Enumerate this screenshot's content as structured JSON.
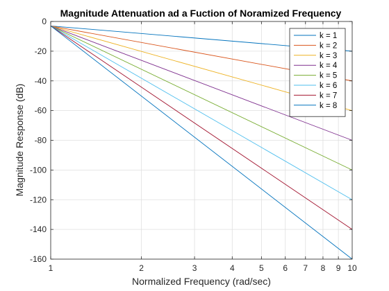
{
  "chart_data": {
    "type": "line",
    "title": "Magnitude Attenuation ad a Fuction of Noramized Frequency",
    "xlabel": "Normalized Frequency (rad/sec)",
    "ylabel": "Magnitude Response (dB)",
    "xscale": "log",
    "xlim": [
      1,
      10
    ],
    "ylim": [
      -160,
      0
    ],
    "x_ticks": [
      1,
      2,
      3,
      4,
      5,
      6,
      7,
      8,
      9,
      10
    ],
    "x_tick_labels": [
      "1",
      "2",
      "3",
      "4",
      "5",
      "6",
      "7",
      "8",
      "9",
      "10"
    ],
    "y_ticks": [
      0,
      -20,
      -40,
      -60,
      -80,
      -100,
      -120,
      -140,
      -160
    ],
    "y_tick_labels": [
      "0",
      "-20",
      "-40",
      "-60",
      "-80",
      "-100",
      "-120",
      "-140",
      "-160"
    ],
    "grid": true,
    "legend_position": "top-right",
    "x": [
      1,
      10
    ],
    "series": [
      {
        "name": "k = 1",
        "color": "#0072BD",
        "values": [
          -3,
          -20
        ]
      },
      {
        "name": "k = 2",
        "color": "#D95319",
        "values": [
          -3,
          -40
        ]
      },
      {
        "name": "k = 3",
        "color": "#EDB120",
        "values": [
          -3,
          -60
        ]
      },
      {
        "name": "k = 4",
        "color": "#7E2F8E",
        "values": [
          -3,
          -80
        ]
      },
      {
        "name": "k = 5",
        "color": "#77AC30",
        "values": [
          -3,
          -100
        ]
      },
      {
        "name": "k = 6",
        "color": "#4DBEEE",
        "values": [
          -3,
          -120
        ]
      },
      {
        "name": "k = 7",
        "color": "#A2142F",
        "values": [
          -3,
          -140
        ]
      },
      {
        "name": "k = 8",
        "color": "#0072BD",
        "values": [
          -3,
          -160
        ]
      }
    ]
  }
}
